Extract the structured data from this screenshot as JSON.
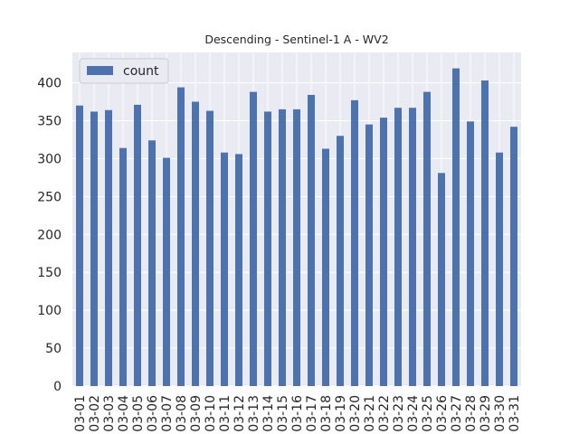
{
  "chart_data": {
    "type": "bar",
    "title": "Descending - Sentinel-1 A - WV2",
    "xlabel": "",
    "ylabel": "",
    "ylim": [
      0,
      440
    ],
    "yticks": [
      0,
      50,
      100,
      150,
      200,
      250,
      300,
      350,
      400
    ],
    "grid": true,
    "legend_position": "top-left",
    "categories": [
      "03-01",
      "03-02",
      "03-03",
      "03-04",
      "03-05",
      "03-06",
      "03-07",
      "03-08",
      "03-09",
      "03-10",
      "03-11",
      "03-12",
      "03-13",
      "03-14",
      "03-15",
      "03-16",
      "03-17",
      "03-18",
      "03-19",
      "03-20",
      "03-21",
      "03-22",
      "03-23",
      "03-24",
      "03-25",
      "03-26",
      "03-27",
      "03-28",
      "03-29",
      "03-30",
      "03-31"
    ],
    "series": [
      {
        "name": "count",
        "color": "#4c72b0",
        "values": [
          370,
          362,
          364,
          314,
          371,
          324,
          301,
          394,
          375,
          363,
          308,
          306,
          388,
          362,
          365,
          365,
          384,
          313,
          330,
          377,
          345,
          354,
          367,
          367,
          388,
          281,
          419,
          349,
          403,
          308,
          342
        ]
      }
    ]
  },
  "colors": {
    "plot_background": "#eaeaf2",
    "grid": "#ffffff",
    "bar": "#4c72b0",
    "text": "#262626"
  }
}
